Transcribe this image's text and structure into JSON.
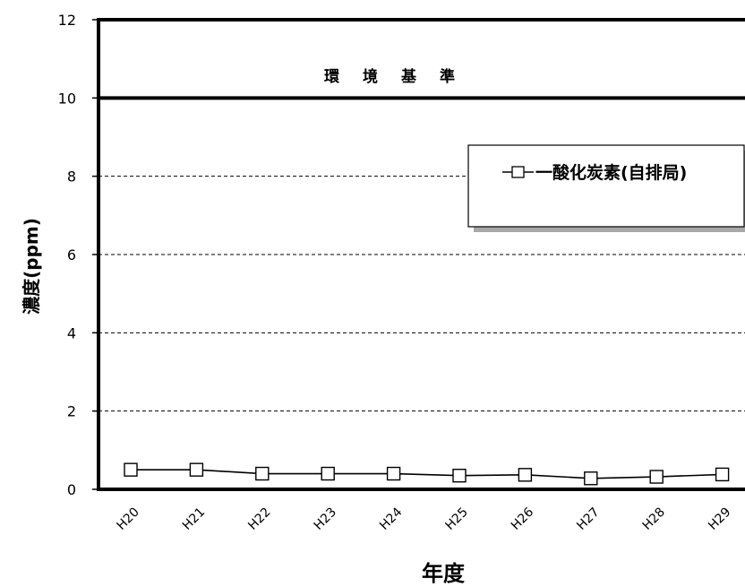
{
  "chart_data": {
    "type": "line",
    "categories": [
      "H20",
      "H21",
      "H22",
      "H23",
      "H24",
      "H25",
      "H26",
      "H27",
      "H28",
      "H29"
    ],
    "series": [
      {
        "name": "一酸化炭素(自排局)",
        "values": [
          0.5,
          0.5,
          0.4,
          0.4,
          0.4,
          0.35,
          0.37,
          0.28,
          0.32,
          0.38
        ],
        "marker": "open-square",
        "color": "#000000"
      }
    ],
    "xlabel": "年度",
    "ylabel": "濃度(ppm)",
    "ylim": [
      0,
      12
    ],
    "yticks": [
      0,
      2,
      4,
      6,
      8,
      10,
      12
    ],
    "grid": "dashed horizontal at 2, 4, 6, 8",
    "standard": {
      "value": 10,
      "label": "環境基準"
    },
    "legend_position": "upper-right"
  }
}
